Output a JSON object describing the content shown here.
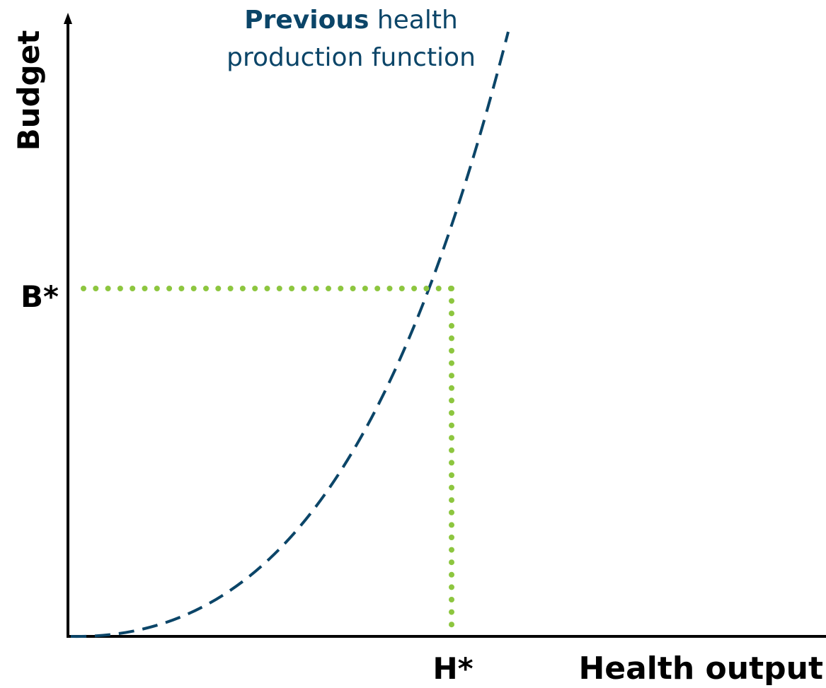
{
  "axes": {
    "y_label": "Budget",
    "x_label": "Health output"
  },
  "markers": {
    "b_star": "B*",
    "h_star": "H*"
  },
  "curve": {
    "label_bold": "Previous",
    "label_rest": " health",
    "label_line2": "production function"
  }
}
